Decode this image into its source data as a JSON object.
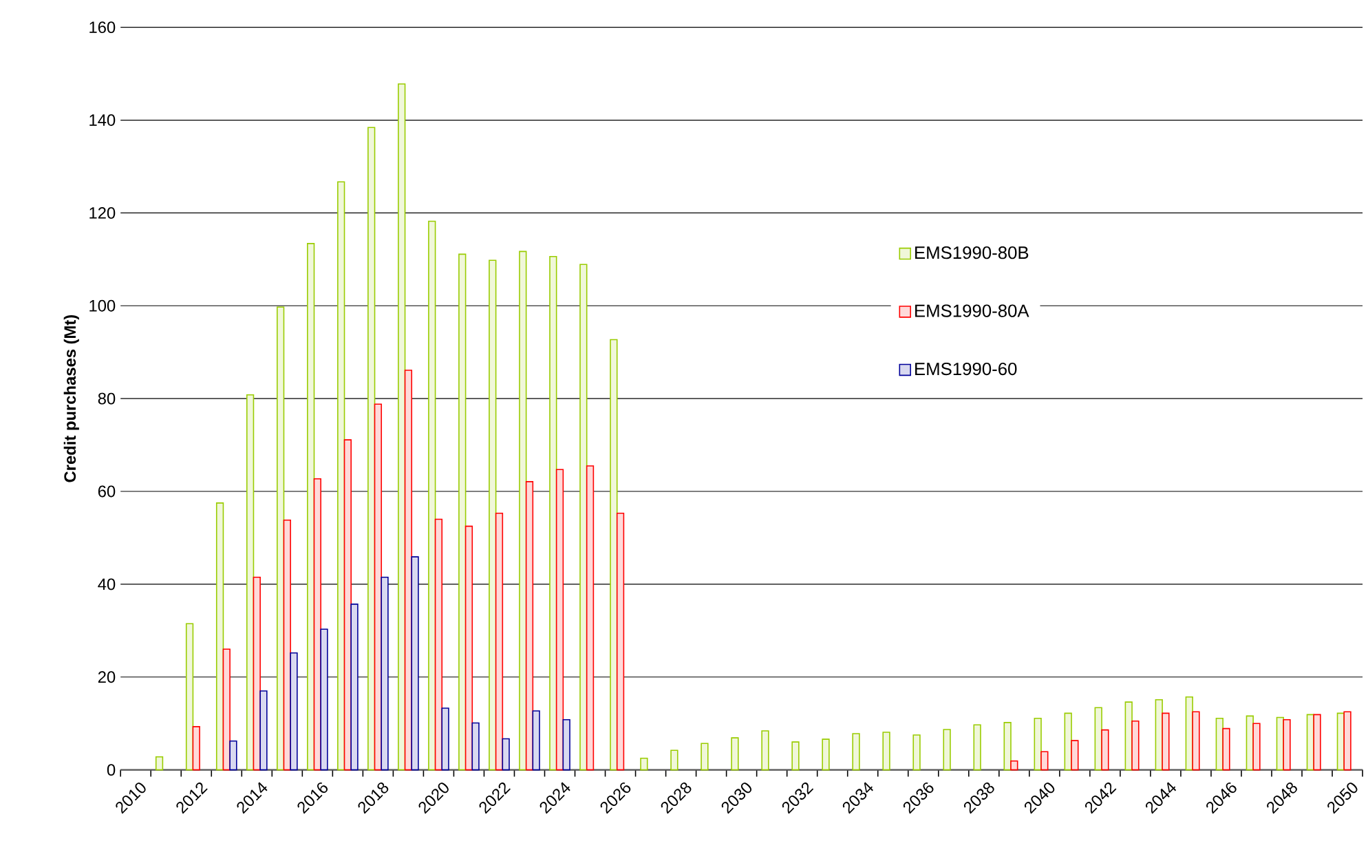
{
  "chart_data": {
    "type": "bar",
    "ylabel": "Credit purchases (Mt)",
    "categories": [
      "2010",
      null,
      "2012",
      null,
      "2014",
      null,
      "2016",
      null,
      "2018",
      null,
      "2020",
      null,
      "2022",
      null,
      "2024",
      null,
      "2026",
      null,
      "2028",
      null,
      "2030",
      null,
      "2032",
      null,
      "2034",
      null,
      "2036",
      null,
      "2038",
      null,
      "2040",
      null,
      "2042",
      null,
      "2044",
      null,
      "2046",
      null,
      "2048",
      null,
      "2050"
    ],
    "series": [
      {
        "name": "EMS1990-80B",
        "color": "#99cc00",
        "values": [
          null,
          2.8,
          31.5,
          57.5,
          80.8,
          99.7,
          113.4,
          126.7,
          138.4,
          147.8,
          118.2,
          111.1,
          109.8,
          111.7,
          110.6,
          108.9,
          92.7,
          2.5,
          4.2,
          5.7,
          6.9,
          8.4,
          6.0,
          6.6,
          7.8,
          8.1,
          7.5,
          8.7,
          9.7,
          10.2,
          11.1,
          12.2,
          13.4,
          14.6,
          15.1,
          15.7,
          11.1,
          11.6,
          11.3,
          11.9,
          12.2
        ]
      },
      {
        "name": "EMS1990-80A",
        "color": "#ff0000",
        "values": [
          null,
          null,
          9.3,
          26,
          41.5,
          53.8,
          62.7,
          71.1,
          78.8,
          86.1,
          54,
          52.5,
          55.3,
          62.1,
          64.7,
          65.5,
          55.3,
          null,
          null,
          null,
          null,
          null,
          null,
          null,
          null,
          null,
          null,
          null,
          null,
          1.9,
          3.9,
          6.3,
          8.6,
          10.5,
          12.2,
          12.5,
          8.9,
          10.0,
          10.8,
          11.9,
          12.5
        ]
      },
      {
        "name": "EMS1990-60",
        "color": "#000099",
        "values": [
          null,
          null,
          null,
          6.2,
          17,
          25.2,
          30.3,
          35.7,
          41.5,
          45.9,
          13.3,
          10.1,
          6.7,
          12.7,
          10.8,
          null,
          null,
          null,
          null,
          null,
          null,
          null,
          null,
          null,
          null,
          null,
          null,
          null,
          null,
          null,
          null,
          null,
          null,
          null,
          null,
          null,
          null,
          null,
          null,
          null,
          null
        ]
      }
    ],
    "ylim": [
      0,
      160
    ],
    "yticks": [
      0,
      20,
      40,
      60,
      80,
      100,
      120,
      140,
      160
    ],
    "grid": "y",
    "legend": "right"
  }
}
